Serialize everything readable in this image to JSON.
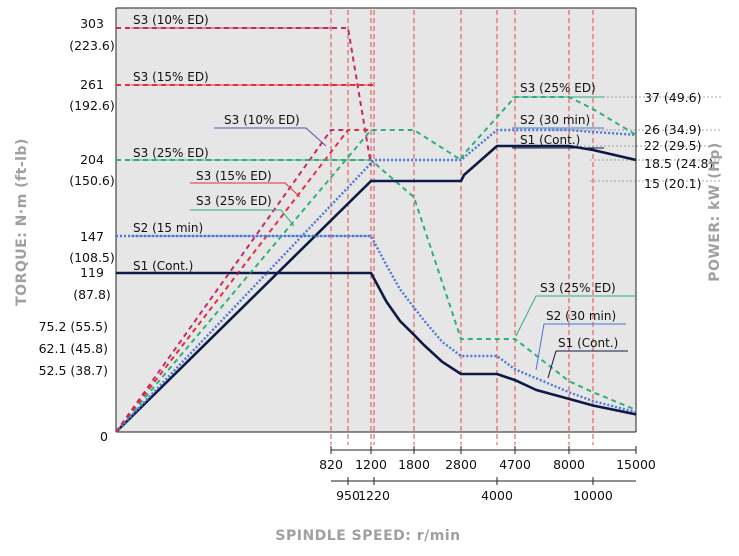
{
  "chart_data": {
    "type": "line",
    "title": "",
    "xlabel": "SPINDLE SPEED: r/min",
    "ylabel_left": "TORQUE: N·m (ft-lb)",
    "ylabel_right": "POWER: kW (Hp)",
    "x_ticks_top": [
      "820",
      "1200",
      "1800",
      "2800",
      "4700",
      "8000",
      "15000"
    ],
    "x_ticks_bottom": [
      "950",
      "1220",
      "4000",
      "10000"
    ],
    "y_ticks_left": [
      {
        "label": "303",
        "sub": "(223.6)"
      },
      {
        "label": "261",
        "sub": "(192.6)"
      },
      {
        "label": "204",
        "sub": "(150.6)"
      },
      {
        "label": "147",
        "sub": "(108.5)"
      },
      {
        "label": "119",
        "sub": "(87.8)"
      },
      {
        "label": "75.2 (55.5)"
      },
      {
        "label": "62.1 (45.8)"
      },
      {
        "label": "52.5 (38.7)"
      },
      {
        "label": "0"
      }
    ],
    "y_ticks_right": [
      "37 (49.6)",
      "26 (34.9)",
      "22 (29.5)",
      "18.5 (24.8)",
      "15 (20.1)"
    ],
    "colors": {
      "s1": "#0d1a45",
      "s2": "#4a78d6",
      "s3_25": "#2fb07a",
      "s3_15": "#e03040",
      "s3_10": "#c42a6a",
      "grid": "#e04848",
      "plot_bg": "#e6e6e6"
    },
    "series": [
      {
        "name": "S1 (Cont.)",
        "kind": "torque",
        "style": "solid",
        "color": "#0d1a45",
        "points": [
          [
            0,
            119
          ],
          [
            1200,
            119
          ],
          [
            1400,
            100
          ],
          [
            1600,
            87
          ],
          [
            1800,
            78
          ],
          [
            2000,
            71
          ],
          [
            2400,
            59
          ],
          [
            2800,
            52.5
          ],
          [
            4000,
            52.5
          ],
          [
            4700,
            47
          ],
          [
            6000,
            38
          ],
          [
            8000,
            30
          ],
          [
            10000,
            24
          ],
          [
            15000,
            16
          ]
        ]
      },
      {
        "name": "S2 (15 min)",
        "kind": "torque",
        "style": "dotted",
        "color": "#4a78d6",
        "points": [
          [
            0,
            147
          ],
          [
            1200,
            147
          ],
          [
            1400,
            125
          ],
          [
            1600,
            108
          ],
          [
            2000,
            88
          ],
          [
            2400,
            73
          ],
          [
            2800,
            62.1
          ],
          [
            4000,
            62.1
          ],
          [
            4700,
            55
          ],
          [
            8000,
            36
          ],
          [
            10000,
            28
          ],
          [
            15000,
            18
          ]
        ]
      },
      {
        "name": "S3 (25% ED)",
        "kind": "torque",
        "style": "dashed",
        "color": "#2fb07a",
        "points": [
          [
            0,
            204
          ],
          [
            1200,
            204
          ],
          [
            1800,
            176
          ],
          [
            2800,
            75.2
          ],
          [
            4700,
            75.2
          ],
          [
            8000,
            46
          ],
          [
            10000,
            36
          ],
          [
            15000,
            20
          ]
        ]
      },
      {
        "name": "S3 (15% ED)",
        "kind": "torque",
        "style": "dashed",
        "color": "#e03040",
        "points": [
          [
            0,
            261
          ],
          [
            1220,
            261
          ]
        ]
      },
      {
        "name": "S3 (10% ED)",
        "kind": "torque",
        "style": "dashed",
        "color": "#c42a6a",
        "points": [
          [
            0,
            303
          ],
          [
            950,
            303
          ],
          [
            1200,
            200
          ]
        ]
      },
      {
        "name": "S1 (Cont.)",
        "kind": "power",
        "style": "solid",
        "color": "#0d1a45",
        "points": [
          [
            0,
            0
          ],
          [
            1200,
            15
          ],
          [
            2800,
            15
          ],
          [
            2900,
            16
          ],
          [
            4000,
            22
          ],
          [
            8000,
            22
          ],
          [
            10000,
            21
          ],
          [
            15000,
            18.5
          ]
        ]
      },
      {
        "name": "S2 (30 min)",
        "kind": "power",
        "style": "dotted",
        "color": "#4a78d6",
        "points": [
          [
            0,
            0
          ],
          [
            1220,
            18.5
          ],
          [
            2800,
            18.5
          ],
          [
            4000,
            26
          ],
          [
            8000,
            26
          ],
          [
            10000,
            25.5
          ],
          [
            15000,
            24.8
          ]
        ]
      },
      {
        "name": "S3 (25% ED)",
        "kind": "power",
        "style": "dashed",
        "color": "#2fb07a",
        "points": [
          [
            0,
            0
          ],
          [
            1200,
            26
          ],
          [
            1800,
            26
          ],
          [
            2800,
            18.5
          ],
          [
            2900,
            20
          ],
          [
            4700,
            37
          ],
          [
            8000,
            37
          ],
          [
            10000,
            33
          ],
          [
            15000,
            24.8
          ]
        ]
      },
      {
        "name": "S3 (15% ED)",
        "kind": "power",
        "style": "dashed",
        "color": "#e03040",
        "points": [
          [
            0,
            0
          ],
          [
            950,
            26
          ],
          [
            1200,
            26
          ]
        ]
      },
      {
        "name": "S3 (10% ED)",
        "kind": "power",
        "style": "dashed",
        "color": "#c42a6a",
        "points": [
          [
            0,
            0
          ],
          [
            820,
            26
          ],
          [
            950,
            26
          ]
        ]
      }
    ],
    "annotations": [
      {
        "text": "S3 (10% ED)",
        "color": "#c42a6a"
      },
      {
        "text": "S3 (15% ED)",
        "color": "#e03040"
      },
      {
        "text": "S3 (25% ED)",
        "color": "#2fb07a"
      },
      {
        "text": "S2 (15 min)",
        "color": "#4a78d6"
      },
      {
        "text": "S1 (Cont.)",
        "color": "#0d1a45"
      },
      {
        "text": "S3 (10% ED)",
        "color": "#6a4aa8"
      },
      {
        "text": "S3 (15% ED)",
        "color": "#e03040"
      },
      {
        "text": "S3 (25% ED)",
        "color": "#2fb07a"
      },
      {
        "text": "S3 (25% ED)",
        "color": "#2fb07a"
      },
      {
        "text": "S2 (30 min)",
        "color": "#4a78d6"
      },
      {
        "text": "S1 (Cont.)",
        "color": "#0d1a45"
      },
      {
        "text": "S3 (25% ED)",
        "color": "#2fb07a"
      },
      {
        "text": "S2 (30 min)",
        "color": "#4a78d6"
      },
      {
        "text": "S1 (Cont.)",
        "color": "#0d1a45"
      }
    ],
    "grid": true,
    "legend": "none"
  }
}
